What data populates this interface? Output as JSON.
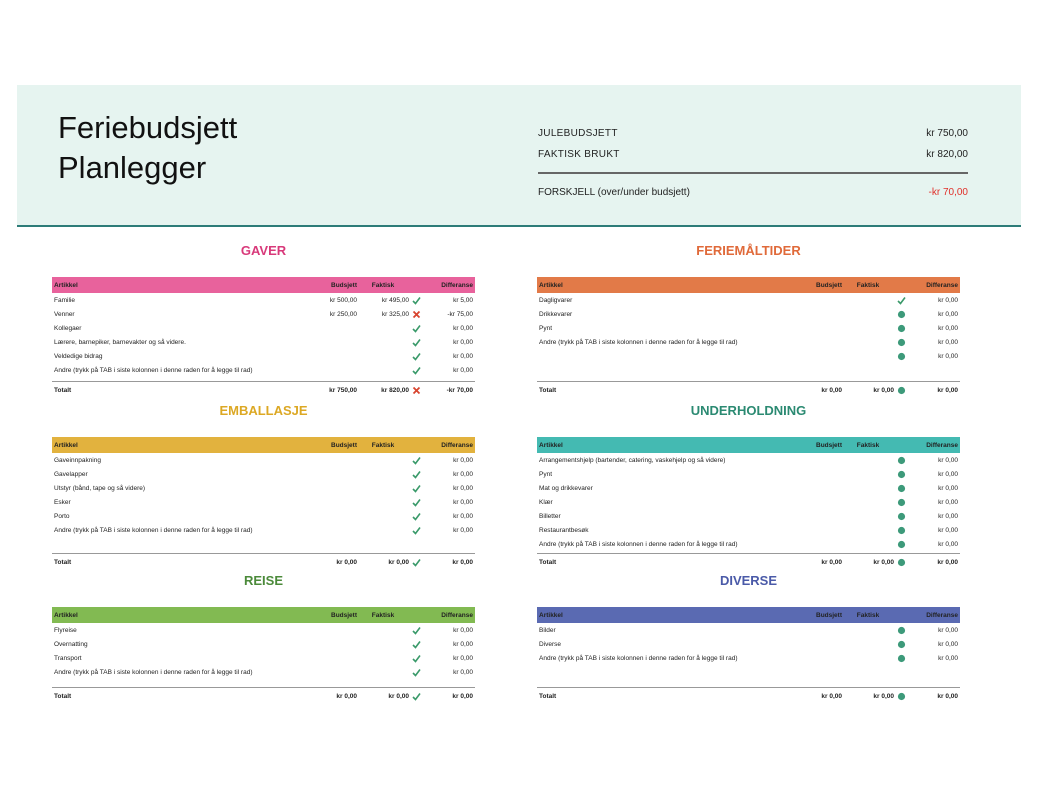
{
  "header": {
    "title_lines": [
      "Feriebudsjett",
      "Planlegger"
    ],
    "summary": [
      {
        "label": "JULEBUDSJETT",
        "value": "kr 750,00"
      },
      {
        "label": "FAKTISK BRUKT",
        "value": "kr 820,00"
      },
      {
        "label": "FORSKJELL (over/under budsjett)",
        "value": "-kr 70,00"
      }
    ]
  },
  "sections": [
    {
      "title": "GAVER",
      "columns": [
        "Artikkel",
        "Budsjett",
        "Faktisk",
        "Differanse"
      ],
      "rows": [
        {
          "item": "Familie",
          "budget": "kr 500,00",
          "actual": "kr 495,00",
          "difference": "kr 5,00"
        },
        {
          "item": "Venner",
          "budget": "kr 250,00",
          "actual": "kr 325,00",
          "difference": "-kr 75,00"
        },
        {
          "item": "Kollegaer",
          "difference": "kr 0,00"
        },
        {
          "item": "Lærere, barnepiker, barnevakter og så videre.",
          "difference": "kr 0,00"
        },
        {
          "item": "Veldedige bidrag",
          "difference": "kr 0,00"
        },
        {
          "item": "Andre (trykk på TAB i siste kolonnen i denne raden for å legge til rad)",
          "difference": "kr 0,00"
        }
      ],
      "total": {
        "item": "Totalt",
        "budget": "kr 750,00",
        "actual": "kr 820,00",
        "difference": "-kr 70,00"
      }
    },
    {
      "title": "FERIEMÅLTIDER",
      "columns": [
        "Artikkel",
        "Budsjett",
        "Faktisk",
        "Differanse"
      ],
      "rows": [
        {
          "item": "Dagligvarer",
          "difference": "kr 0,00"
        },
        {
          "item": "Drikkevarer",
          "difference": "kr 0,00"
        },
        {
          "item": "Pynt",
          "difference": "kr 0,00"
        },
        {
          "item": "Andre (trykk på TAB i siste kolonnen i denne raden for å legge til rad)",
          "difference": "kr 0,00"
        },
        {
          "difference": "kr 0,00"
        }
      ],
      "total": {
        "item": "Totalt",
        "budget": "kr 0,00",
        "actual": "kr 0,00",
        "difference": "kr 0,00"
      }
    },
    {
      "title": "EMBALLASJE",
      "columns": [
        "Artikkel",
        "Budsjett",
        "Faktisk",
        "Differanse"
      ],
      "rows": [
        {
          "item": "Gaveinnpakning",
          "difference": "kr 0,00"
        },
        {
          "item": "Gavelapper",
          "difference": "kr 0,00"
        },
        {
          "item": "Utstyr (bånd, tape og så videre)",
          "difference": "kr 0,00"
        },
        {
          "item": "Esker",
          "difference": "kr 0,00"
        },
        {
          "item": "Porto",
          "difference": "kr 0,00"
        },
        {
          "item": "Andre (trykk på TAB i siste kolonnen i denne raden for å legge til rad)",
          "difference": "kr 0,00"
        }
      ],
      "total": {
        "item": "Totalt",
        "budget": "kr 0,00",
        "actual": "kr 0,00",
        "difference": "kr 0,00"
      }
    },
    {
      "title": "UNDERHOLDNING",
      "columns": [
        "Artikkel",
        "Budsjett",
        "Faktisk",
        "Differanse"
      ],
      "rows": [
        {
          "item": "Arrangementshjelp (bartender, catering, vaskehjelp og så videre)",
          "difference": "kr 0,00"
        },
        {
          "item": "Pynt",
          "difference": "kr 0,00"
        },
        {
          "item": "Mat og drikkevarer",
          "difference": "kr 0,00"
        },
        {
          "item": "Klær",
          "difference": "kr 0,00"
        },
        {
          "item": "Billetter",
          "difference": "kr 0,00"
        },
        {
          "item": "Restaurantbesøk",
          "difference": "kr 0,00"
        },
        {
          "item": "Andre (trykk på TAB i siste kolonnen i denne raden for å legge til rad)",
          "difference": "kr 0,00"
        }
      ],
      "total": {
        "item": "Totalt",
        "budget": "kr 0,00",
        "actual": "kr 0,00",
        "difference": "kr 0,00"
      }
    },
    {
      "title": "REISE",
      "columns": [
        "Artikkel",
        "Budsjett",
        "Faktisk",
        "Differanse"
      ],
      "rows": [
        {
          "item": "Flyreise",
          "difference": "kr 0,00"
        },
        {
          "item": "Overnatting",
          "difference": "kr 0,00"
        },
        {
          "item": "Transport",
          "difference": "kr 0,00"
        },
        {
          "item": "Andre (trykk på TAB i siste kolonnen i denne raden for å legge til rad)",
          "difference": "kr 0,00"
        }
      ],
      "total": {
        "item": "Totalt",
        "budget": "kr 0,00",
        "actual": "kr 0,00",
        "difference": "kr 0,00"
      }
    },
    {
      "title": "DIVERSE",
      "columns": [
        "Artikkel",
        "Budsjett",
        "Faktisk",
        "Differanse"
      ],
      "rows": [
        {
          "item": "Bilder",
          "difference": "kr 0,00"
        },
        {
          "item": "Diverse",
          "difference": "kr 0,00"
        },
        {
          "item": "Andre (trykk på TAB i siste kolonnen i denne raden for å legge til rad)",
          "difference": "kr 0,00"
        }
      ],
      "total": {
        "item": "Totalt",
        "budget": "kr 0,00",
        "actual": "kr 0,00",
        "difference": "kr 0,00"
      }
    }
  ]
}
